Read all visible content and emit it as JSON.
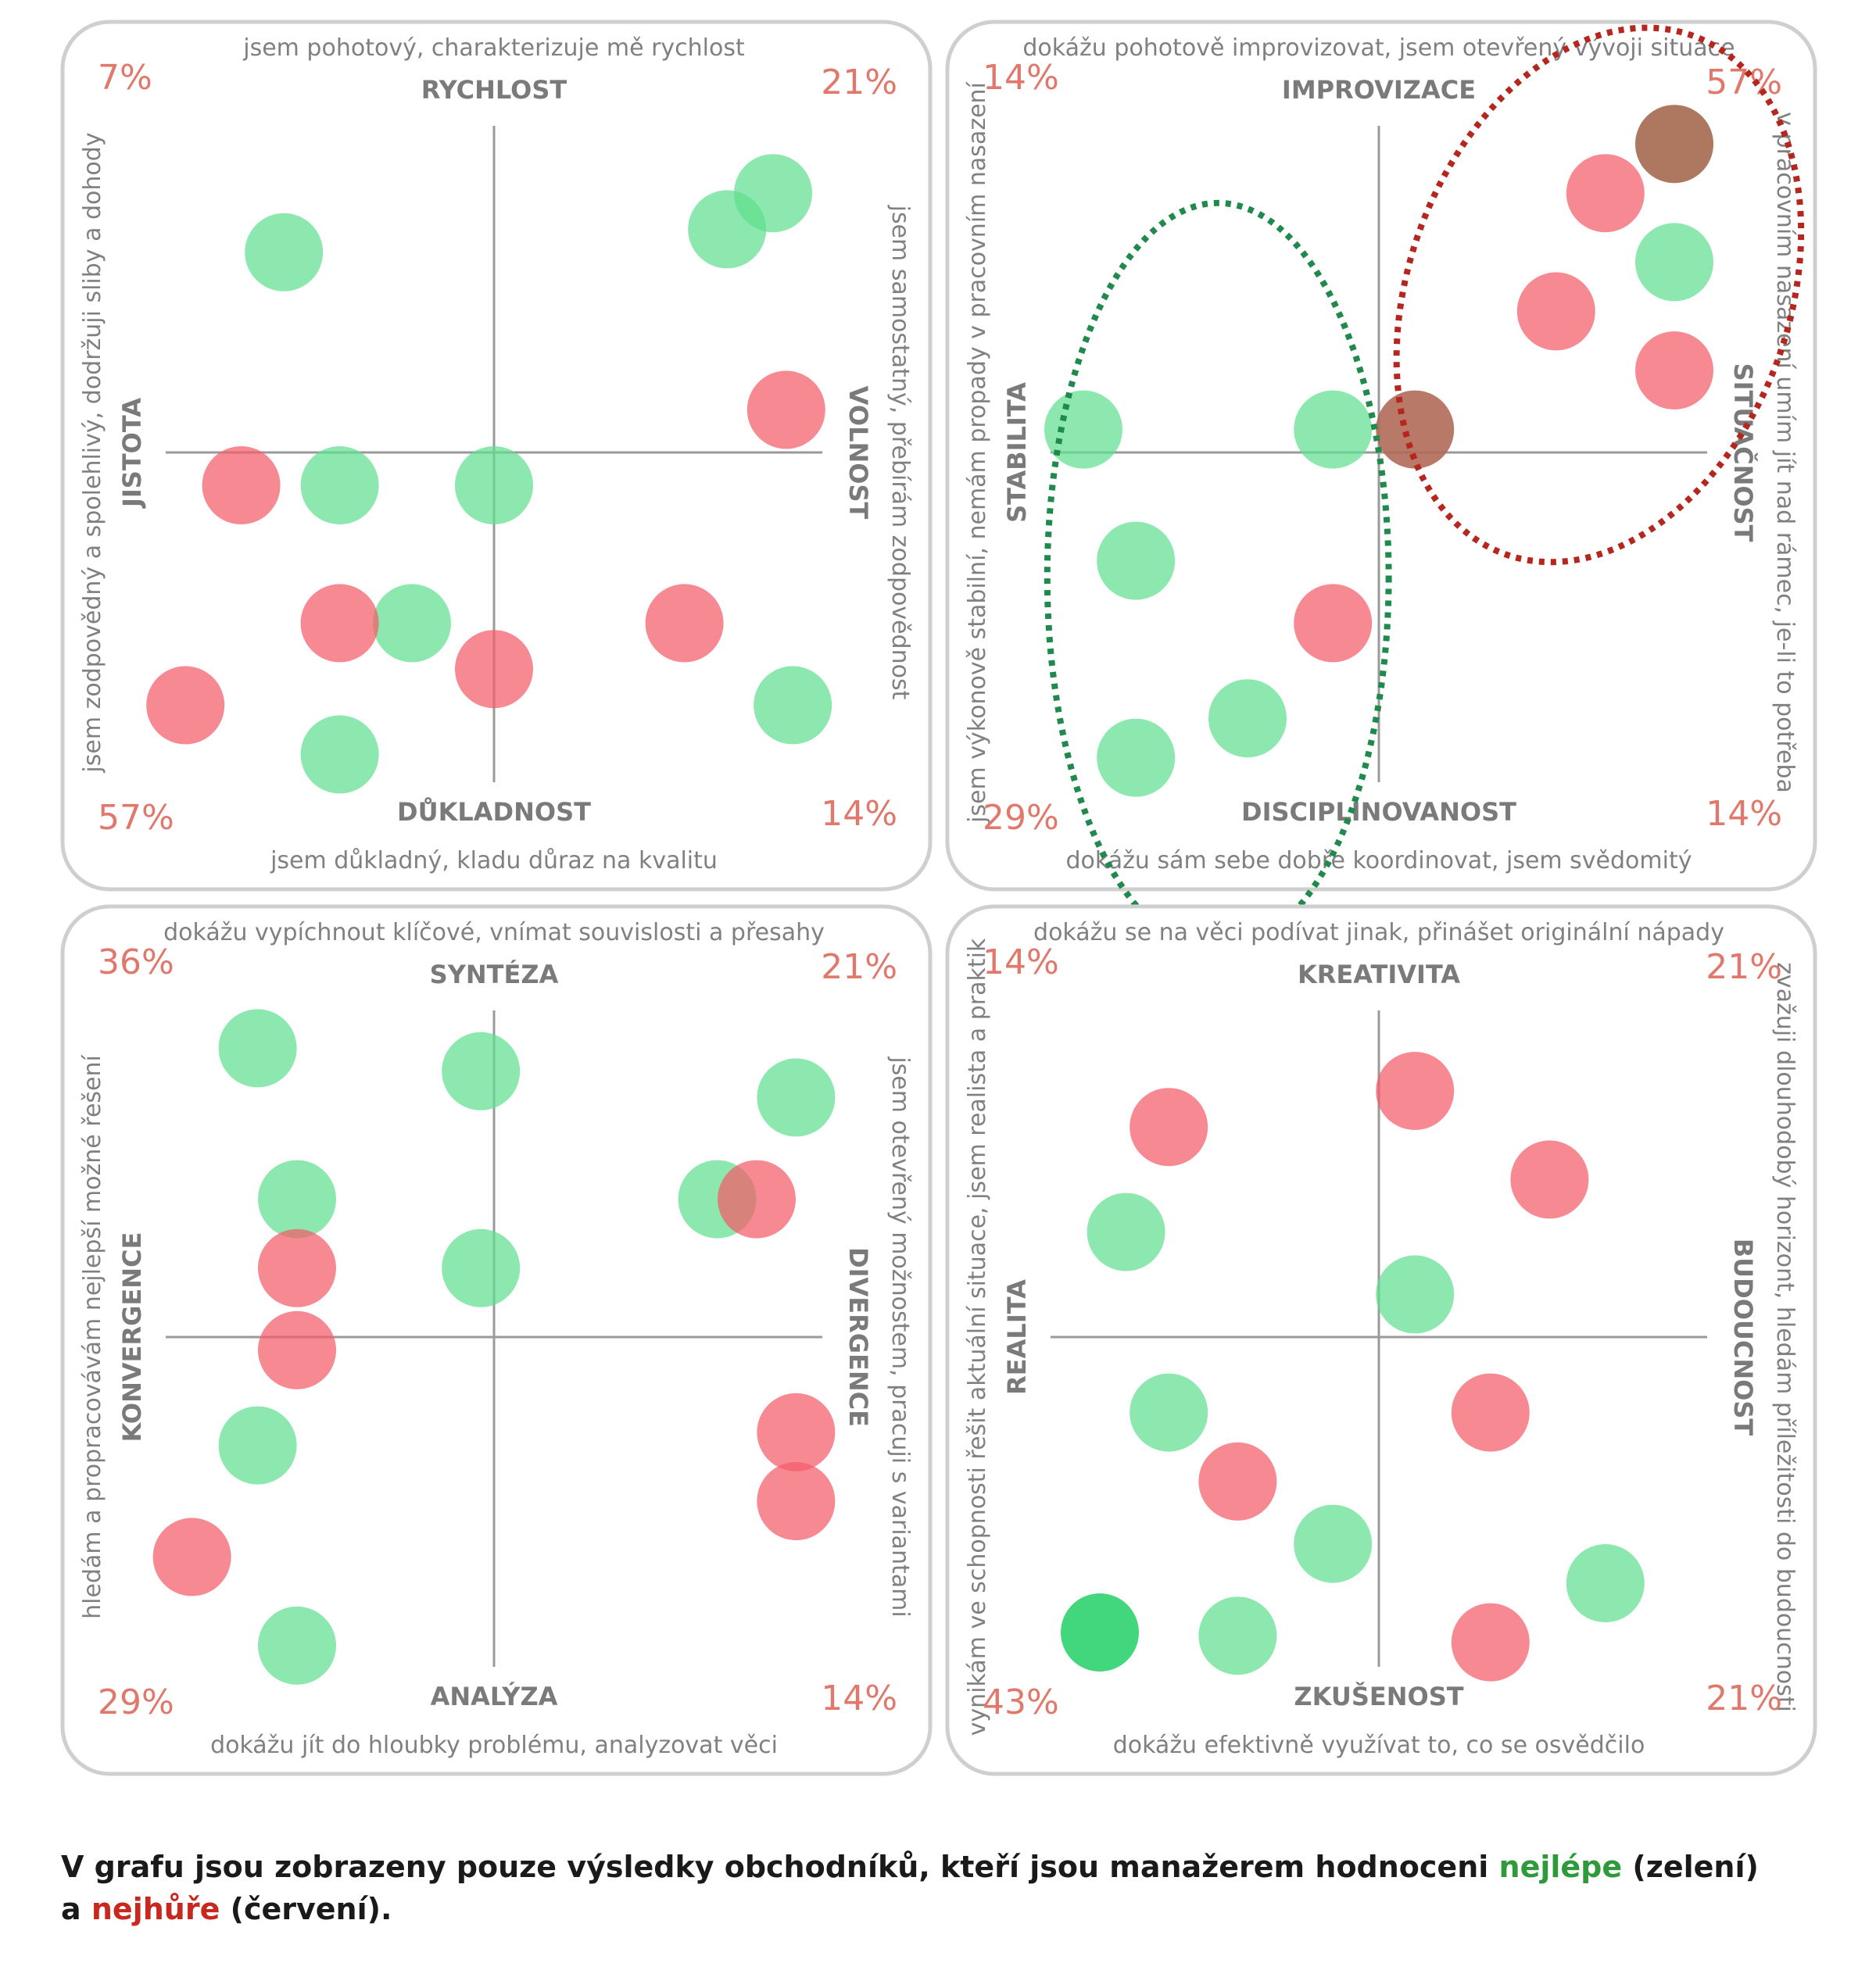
{
  "colors": {
    "best": "#5fdf8f",
    "worst": "#f45b6a",
    "overlap": "#b06a58",
    "strong_best": "#2fd36f",
    "percent": "#e0786c",
    "axis_label": "#7a7a7a",
    "description": "#808080",
    "axis_line": "#9a9a9a",
    "frame": "#cfcfcf",
    "ellipse_green": "#1f8a4c",
    "ellipse_red": "#b5261e"
  },
  "chart_data": [
    {
      "type": "scatter",
      "labels": {
        "top": "RYCHLOST",
        "bottom": "DŮKLADNOST",
        "left": "JISTOTA",
        "right": "VOLNOST"
      },
      "descriptions": {
        "top": "jsem pohotový, charakterizuje mě rychlost",
        "bottom": "jsem důkladný, kladu důraz na kvalitu",
        "left": "jsem zodpovědný a spolehlivý, dodržuji sliby a dohody",
        "right": "jsem samostatný, přebírám zodpovědnost"
      },
      "percentages": {
        "top_left": "7%",
        "top_right": "21%",
        "bottom_left": "57%",
        "bottom_right": "14%"
      },
      "xlim": [
        -1,
        1
      ],
      "ylim": [
        -1,
        1
      ],
      "series": [
        {
          "name": "nejlépe",
          "color": "#5fdf8f",
          "points": [
            [
              -0.64,
              0.61
            ],
            [
              0.71,
              0.68
            ],
            [
              0.85,
              0.79
            ],
            [
              -0.47,
              -0.1
            ],
            [
              0.0,
              -0.1
            ],
            [
              -0.25,
              -0.52
            ],
            [
              -0.47,
              -0.92
            ],
            [
              0.91,
              -0.77
            ]
          ]
        },
        {
          "name": "nejhůře",
          "color": "#f45b6a",
          "points": [
            [
              0.89,
              0.13
            ],
            [
              -0.77,
              -0.1
            ],
            [
              -0.47,
              -0.52
            ],
            [
              0.0,
              -0.66
            ],
            [
              0.58,
              -0.52
            ],
            [
              -0.94,
              -0.77
            ]
          ]
        }
      ]
    },
    {
      "type": "scatter",
      "labels": {
        "top": "IMPROVIZACE",
        "bottom": "DISCIPLINOVANOST",
        "left": "STABILITA",
        "right": "SITUAČNOST"
      },
      "descriptions": {
        "top": "dokážu pohotově improvizovat, jsem otevřený vývoji situace",
        "bottom": "dokážu sám sebe dobře koordinovat, jsem svědomitý",
        "left": "jsem výkonově stabilní, nemám propady v pracovním nasazení",
        "right": "v pracovním nasazení umím jít nad rámec, je-li to potřeba"
      },
      "percentages": {
        "top_left": "14%",
        "top_right": "57%",
        "bottom_left": "29%",
        "bottom_right": "14%"
      },
      "xlim": [
        -1,
        1
      ],
      "ylim": [
        -1,
        1
      ],
      "series": [
        {
          "name": "nejlépe",
          "color": "#5fdf8f",
          "points": [
            [
              -0.9,
              0.07
            ],
            [
              -0.14,
              0.07
            ],
            [
              -0.74,
              -0.33
            ],
            [
              -0.74,
              -0.93
            ],
            [
              -0.4,
              -0.81
            ],
            [
              0.9,
              0.58
            ],
            [
              0.9,
              0.94
            ]
          ]
        },
        {
          "name": "nejhůře",
          "color": "#f45b6a",
          "points": [
            [
              0.69,
              0.79
            ],
            [
              0.54,
              0.43
            ],
            [
              0.9,
              0.25
            ],
            [
              -0.14,
              -0.52
            ],
            [
              0.9,
              0.94
            ],
            [
              0.11,
              0.07
            ]
          ]
        }
      ],
      "overlaps": [
        [
          0.11,
          0.07
        ],
        [
          0.9,
          0.94
        ]
      ],
      "clusters": [
        {
          "color": "#1f8a4c",
          "cx": -0.49,
          "cy": -0.38,
          "rx": 0.52,
          "ry": 1.14
        },
        {
          "color": "#b5261e",
          "cx": 0.67,
          "cy": 0.48,
          "rx": 0.58,
          "ry": 0.84,
          "rotate": 20
        }
      ]
    },
    {
      "type": "scatter",
      "labels": {
        "top": "SYNTÉZA",
        "bottom": "ANALÝZA",
        "left": "KONVERGENCE",
        "right": "DIVERGENCE"
      },
      "descriptions": {
        "top": "dokážu vypíchnout klíčové, vnímat souvislosti a přesahy",
        "bottom": "dokážu jít do hloubky problému, analyzovat věci",
        "left": "hledám a propracovávám nejlepší možné řešení",
        "right": "jsem otevřený možnostem, pracuji s variantami"
      },
      "percentages": {
        "top_left": "36%",
        "top_right": "21%",
        "bottom_left": "29%",
        "bottom_right": "14%"
      },
      "xlim": [
        -1,
        1
      ],
      "ylim": [
        -1,
        1
      ],
      "series": [
        {
          "name": "nejlépe",
          "color": "#5fdf8f",
          "points": [
            [
              -0.72,
              0.88
            ],
            [
              -0.04,
              0.81
            ],
            [
              0.92,
              0.73
            ],
            [
              -0.6,
              0.42
            ],
            [
              -0.04,
              0.21
            ],
            [
              0.68,
              0.42
            ],
            [
              -0.72,
              -0.33
            ],
            [
              -0.6,
              -0.94
            ]
          ]
        },
        {
          "name": "nejhůře",
          "color": "#f45b6a",
          "points": [
            [
              -0.6,
              0.21
            ],
            [
              -0.6,
              -0.04
            ],
            [
              0.92,
              -0.29
            ],
            [
              0.92,
              -0.5
            ],
            [
              -0.92,
              -0.67
            ],
            [
              0.8,
              0.42
            ]
          ]
        }
      ],
      "overlaps": [
        [
          0.75,
          0.42
        ]
      ]
    },
    {
      "type": "scatter",
      "labels": {
        "top": "KREATIVITA",
        "bottom": "ZKUŠENOST",
        "left": "REALITA",
        "right": "BUDOUCNOST"
      },
      "descriptions": {
        "top": "dokážu se na věci podívat jinak, přinášet originální nápady",
        "bottom": "dokážu efektivně využívat to, co se osvědčilo",
        "left": "vynikám ve schopnosti řešit aktuální situace, jsem realista a praktik",
        "right": "zvažuji dlouhodobý horizont, hledám příležitosti do budoucnosti"
      },
      "percentages": {
        "top_left": "14%",
        "top_right": "21%",
        "bottom_left": "43%",
        "bottom_right": "21%"
      },
      "xlim": [
        -1,
        1
      ],
      "ylim": [
        -1,
        1
      ],
      "series": [
        {
          "name": "nejlépe",
          "color": "#5fdf8f",
          "points": [
            [
              -0.77,
              0.32
            ],
            [
              0.11,
              0.13
            ],
            [
              -0.64,
              -0.23
            ],
            [
              -0.14,
              -0.63
            ],
            [
              0.69,
              -0.75
            ],
            [
              -0.85,
              -0.9
            ],
            [
              -0.43,
              -0.91
            ]
          ]
        },
        {
          "name": "nejhůře",
          "color": "#f45b6a",
          "points": [
            [
              0.11,
              0.75
            ],
            [
              -0.64,
              0.64
            ],
            [
              0.52,
              0.48
            ],
            [
              0.34,
              -0.23
            ],
            [
              -0.43,
              -0.44
            ],
            [
              0.34,
              -0.93
            ]
          ]
        }
      ],
      "strong": [
        [
          -0.85,
          -0.9
        ]
      ]
    }
  ],
  "footnote": {
    "part1": "V grafu jsou zobrazeny pouze výsledky obchodníků, kteří jsou manažerem hodnoceni ",
    "best_word": "nejlépe",
    "part2": " (zelení)",
    "line2_start": "a ",
    "worst_word": "nejhůře",
    "part3": " (červení)."
  }
}
